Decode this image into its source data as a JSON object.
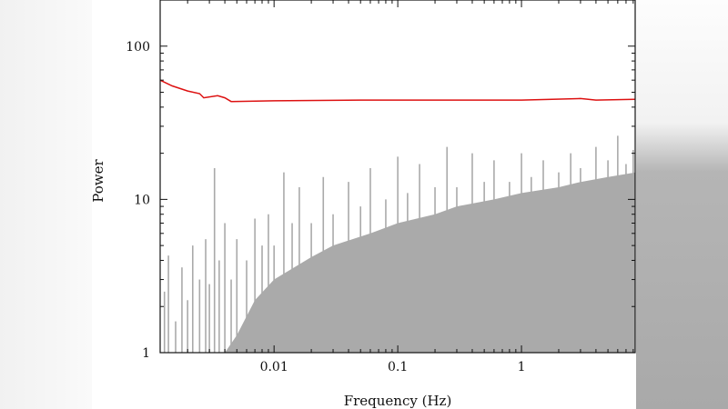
{
  "chart_data": {
    "type": "line",
    "xlabel": "Frequency (Hz)",
    "ylabel": "Power",
    "xscale": "log",
    "yscale": "log",
    "xlim": [
      0.0012,
      8.3
    ],
    "ylim": [
      1,
      200
    ],
    "xticks": [
      {
        "value": 0.01,
        "label": "0.01"
      },
      {
        "value": 0.1,
        "label": "0.1"
      },
      {
        "value": 1,
        "label": "1"
      }
    ],
    "yticks": [
      {
        "value": 1,
        "label": "1"
      },
      {
        "value": 10,
        "label": "10"
      },
      {
        "value": 100,
        "label": "100"
      }
    ],
    "grid": false,
    "colors": {
      "spectrum": "#aaaaaa",
      "threshold": "#dd1111"
    },
    "series": [
      {
        "style": "gray filled spectrum (continuum level)",
        "points": [
          [
            0.0012,
            1
          ],
          [
            0.004,
            1
          ],
          [
            0.005,
            1.3
          ],
          [
            0.007,
            2.2
          ],
          [
            0.01,
            3
          ],
          [
            0.02,
            4.2
          ],
          [
            0.03,
            5
          ],
          [
            0.06,
            6
          ],
          [
            0.1,
            7
          ],
          [
            0.2,
            8
          ],
          [
            0.3,
            9
          ],
          [
            0.6,
            10
          ],
          [
            1,
            11
          ],
          [
            2,
            12
          ],
          [
            3,
            13
          ],
          [
            5,
            14
          ],
          [
            8.3,
            15
          ]
        ]
      },
      {
        "style": "gray spectrum peaks",
        "points": [
          [
            0.0013,
            2.5
          ],
          [
            0.0014,
            4.3
          ],
          [
            0.0016,
            1.6
          ],
          [
            0.0018,
            3.6
          ],
          [
            0.002,
            2.2
          ],
          [
            0.0022,
            5
          ],
          [
            0.0025,
            3
          ],
          [
            0.0028,
            5.5
          ],
          [
            0.003,
            2.8
          ],
          [
            0.0033,
            16
          ],
          [
            0.0036,
            4
          ],
          [
            0.004,
            7
          ],
          [
            0.0045,
            3
          ],
          [
            0.005,
            5.5
          ],
          [
            0.006,
            4
          ],
          [
            0.007,
            7.5
          ],
          [
            0.008,
            5
          ],
          [
            0.009,
            8
          ],
          [
            0.01,
            5
          ],
          [
            0.012,
            15
          ],
          [
            0.014,
            7
          ],
          [
            0.016,
            12
          ],
          [
            0.02,
            7
          ],
          [
            0.025,
            14
          ],
          [
            0.03,
            8
          ],
          [
            0.04,
            13
          ],
          [
            0.05,
            9
          ],
          [
            0.06,
            16
          ],
          [
            0.08,
            10
          ],
          [
            0.1,
            19
          ],
          [
            0.12,
            11
          ],
          [
            0.15,
            17
          ],
          [
            0.2,
            12
          ],
          [
            0.25,
            22
          ],
          [
            0.3,
            12
          ],
          [
            0.4,
            20
          ],
          [
            0.5,
            13
          ],
          [
            0.6,
            18
          ],
          [
            0.8,
            13
          ],
          [
            1,
            20
          ],
          [
            1.2,
            14
          ],
          [
            1.5,
            18
          ],
          [
            2,
            15
          ],
          [
            2.5,
            20
          ],
          [
            3,
            16
          ],
          [
            4,
            22
          ],
          [
            5,
            18
          ],
          [
            6,
            26
          ],
          [
            7,
            17
          ],
          [
            8,
            21
          ]
        ]
      },
      {
        "style": "red line",
        "points": [
          [
            0.0012,
            60
          ],
          [
            0.0015,
            55
          ],
          [
            0.002,
            51
          ],
          [
            0.0025,
            49
          ],
          [
            0.0027,
            46
          ],
          [
            0.0035,
            47.5
          ],
          [
            0.004,
            46
          ],
          [
            0.0045,
            43.5
          ],
          [
            0.01,
            44
          ],
          [
            0.05,
            44.5
          ],
          [
            0.3,
            44.5
          ],
          [
            1,
            44.5
          ],
          [
            3,
            45.5
          ],
          [
            4,
            44.5
          ],
          [
            8.3,
            45
          ]
        ]
      }
    ]
  }
}
